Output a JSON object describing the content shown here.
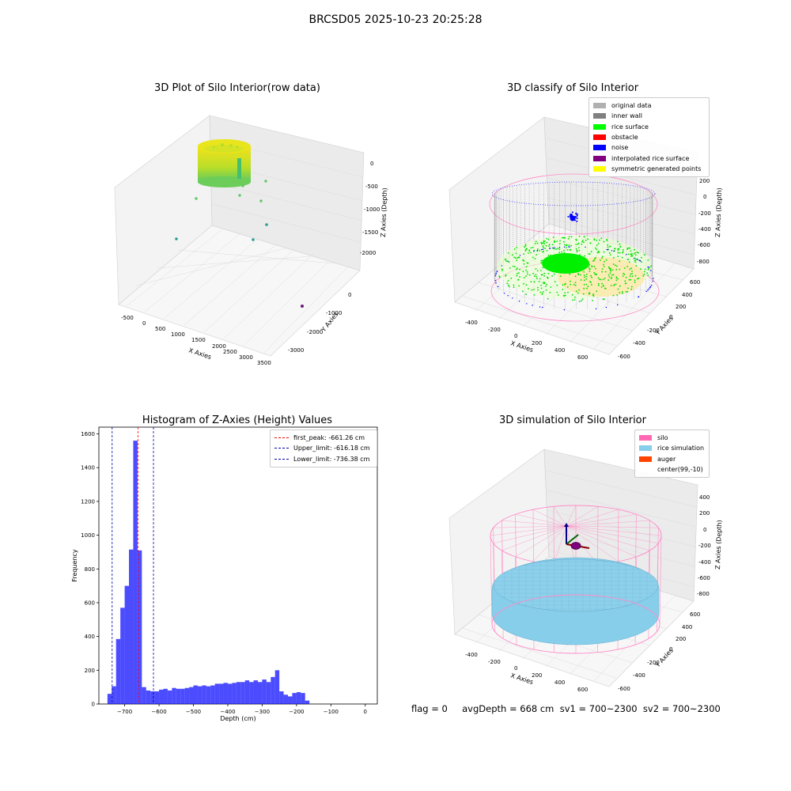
{
  "suptitle": "BRCSD05 2025-10-23 20:25:28",
  "footer": "flag = 0     avgDepth = 668 cm  sv1 = 700~2300  sv2 = 700~2300",
  "panels": {
    "raw": {
      "title": "3D Plot of Silo Interior(row data)",
      "xlabel": "X Axies",
      "ylabel": "Y Axies",
      "zlabel": "Z Axies (Depth)",
      "xticks": [
        "-500",
        "0",
        "500",
        "1000",
        "1500",
        "2000",
        "2500",
        "3000",
        "3500"
      ],
      "yticks": [
        "-3000",
        "-2000",
        "-1000",
        "0"
      ],
      "zticks": [
        "-2000",
        "-1500",
        "-1000",
        "-500",
        "0"
      ]
    },
    "classify": {
      "title": "3D classify of Silo Interior",
      "xlabel": "X Axies",
      "ylabel": "Y Axies",
      "zlabel": "Z Axies (Depth)",
      "xticks": [
        "-400",
        "-200",
        "0",
        "200",
        "400",
        "600"
      ],
      "yticks": [
        "-600",
        "-400",
        "-200",
        "0",
        "200",
        "400",
        "600"
      ],
      "zticks": [
        "-800",
        "-600",
        "-400",
        "-200",
        "0",
        "200"
      ],
      "legend": [
        {
          "label": "original data",
          "color": "#b0b0b0"
        },
        {
          "label": "inner wall",
          "color": "#808080"
        },
        {
          "label": "rice surface",
          "color": "#00ff00"
        },
        {
          "label": "obstacle",
          "color": "#ff0000"
        },
        {
          "label": "noise",
          "color": "#0000ff"
        },
        {
          "label": "interpolated rice surface",
          "color": "#800080"
        },
        {
          "label": "symmetric generated points",
          "color": "#ffff00"
        }
      ]
    },
    "simulation": {
      "title": "3D simulation of Silo Interior",
      "xlabel": "X Axies",
      "ylabel": "Y Axies",
      "zlabel": "Z Axies (Depth)",
      "xticks": [
        "-400",
        "-200",
        "0",
        "200",
        "400",
        "600"
      ],
      "yticks": [
        "-600",
        "-400",
        "-200",
        "0",
        "200",
        "400",
        "600"
      ],
      "zticks": [
        "-800",
        "-600",
        "-400",
        "-200",
        "0",
        "200",
        "400"
      ],
      "legend": [
        {
          "label": "silo",
          "color": "#ff69b4"
        },
        {
          "label": "rice simulation",
          "color": "#87ceeb"
        },
        {
          "label": "auger",
          "color": "#ff4500"
        },
        {
          "label": "center(99,-10)",
          "color": ""
        }
      ]
    }
  },
  "chart_data": [
    {
      "type": "bar",
      "title": "Histogram of Z-Axies (Height) Values",
      "xlabel": "Depth (cm)",
      "ylabel": "Frequency",
      "xlim": [
        -775,
        35
      ],
      "ylim": [
        0,
        1640
      ],
      "xticks": [
        -700,
        -600,
        -500,
        -400,
        -300,
        -200,
        -100,
        0
      ],
      "yticks": [
        0,
        200,
        400,
        600,
        800,
        1000,
        1200,
        1400,
        1600
      ],
      "bar_color": "#0000ff",
      "bin_width": 12.5,
      "bin_start": -750,
      "values": [
        60,
        105,
        385,
        570,
        700,
        915,
        1560,
        910,
        100,
        80,
        75,
        75,
        85,
        90,
        80,
        95,
        90,
        90,
        95,
        100,
        110,
        105,
        110,
        105,
        110,
        120,
        120,
        125,
        120,
        125,
        130,
        130,
        140,
        130,
        140,
        130,
        145,
        130,
        160,
        200,
        75,
        55,
        45,
        65,
        70,
        65,
        20
      ],
      "vlines": [
        {
          "label": "first_peak: -661.26 cm",
          "x": -661.26,
          "color": "#ff0000"
        },
        {
          "label": "Upper_limit: -616.18 cm",
          "x": -616.18,
          "color": "#0000aa"
        },
        {
          "label": "Lower_limit: -736.38 cm",
          "x": -736.38,
          "color": "#0000aa"
        }
      ]
    }
  ]
}
